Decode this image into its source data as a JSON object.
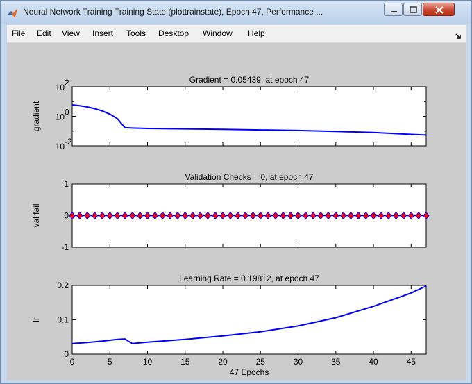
{
  "window": {
    "title": "Neural Network Training Training State (plottrainstate), Epoch 47, Performance ...",
    "controls": [
      "minimize-icon",
      "maximize-icon",
      "close-icon"
    ]
  },
  "menu": {
    "items": [
      "File",
      "Edit",
      "View",
      "Insert",
      "Tools",
      "Desktop",
      "Window",
      "Help"
    ]
  },
  "colors": {
    "line": "#0000ff",
    "marker_fill": "#ff0000",
    "marker_edge": "#0000ff",
    "figure_bg": "#cccccc"
  },
  "chart_data": [
    {
      "type": "line",
      "title": "Gradient = 0.05439, at epoch 47",
      "ylabel": "gradient",
      "yscale": "log",
      "ylim": [
        0.01,
        100
      ],
      "yticks": [
        {
          "base": "10",
          "exp": "2"
        },
        {
          "base": "10",
          "exp": "0"
        },
        {
          "base": "10",
          "exp": "-2"
        }
      ],
      "xlim": [
        0,
        47
      ],
      "x": [
        0,
        1,
        2,
        3,
        4,
        5,
        6,
        7,
        8,
        10,
        15,
        20,
        25,
        30,
        35,
        40,
        45,
        47
      ],
      "values": [
        6,
        5.2,
        4.3,
        3.3,
        2.3,
        1.4,
        0.7,
        0.17,
        0.16,
        0.15,
        0.14,
        0.13,
        0.12,
        0.11,
        0.095,
        0.08,
        0.06,
        0.05439
      ]
    },
    {
      "type": "scatter",
      "title": "Validation Checks = 0, at epoch 47",
      "ylabel": "val fail",
      "ylim": [
        -1,
        1
      ],
      "yticks": [
        "1",
        "0",
        "-1"
      ],
      "xlim": [
        0,
        47
      ],
      "x": [
        0,
        1,
        2,
        3,
        4,
        5,
        6,
        7,
        8,
        9,
        10,
        11,
        12,
        13,
        14,
        15,
        16,
        17,
        18,
        19,
        20,
        21,
        22,
        23,
        24,
        25,
        26,
        27,
        28,
        29,
        30,
        31,
        32,
        33,
        34,
        35,
        36,
        37,
        38,
        39,
        40,
        41,
        42,
        43,
        44,
        45,
        46,
        47
      ],
      "values": [
        0,
        0,
        0,
        0,
        0,
        0,
        0,
        0,
        0,
        0,
        0,
        0,
        0,
        0,
        0,
        0,
        0,
        0,
        0,
        0,
        0,
        0,
        0,
        0,
        0,
        0,
        0,
        0,
        0,
        0,
        0,
        0,
        0,
        0,
        0,
        0,
        0,
        0,
        0,
        0,
        0,
        0,
        0,
        0,
        0,
        0,
        0,
        0
      ]
    },
    {
      "type": "line",
      "title": "Learning Rate = 0.19812, at epoch 47",
      "ylabel": "lr",
      "xlabel": "47 Epochs",
      "ylim": [
        0,
        0.2
      ],
      "yticks": [
        "0.2",
        "0.1",
        "0"
      ],
      "xlim": [
        0,
        47
      ],
      "xticks": [
        "0",
        "5",
        "10",
        "15",
        "20",
        "25",
        "30",
        "35",
        "40",
        "45"
      ],
      "x": [
        0,
        2,
        4,
        6,
        7,
        7.5,
        8,
        10,
        15,
        20,
        25,
        30,
        35,
        40,
        45,
        47
      ],
      "values": [
        0.031,
        0.034,
        0.038,
        0.043,
        0.044,
        0.037,
        0.031,
        0.035,
        0.043,
        0.053,
        0.065,
        0.082,
        0.106,
        0.139,
        0.178,
        0.19812
      ]
    }
  ]
}
